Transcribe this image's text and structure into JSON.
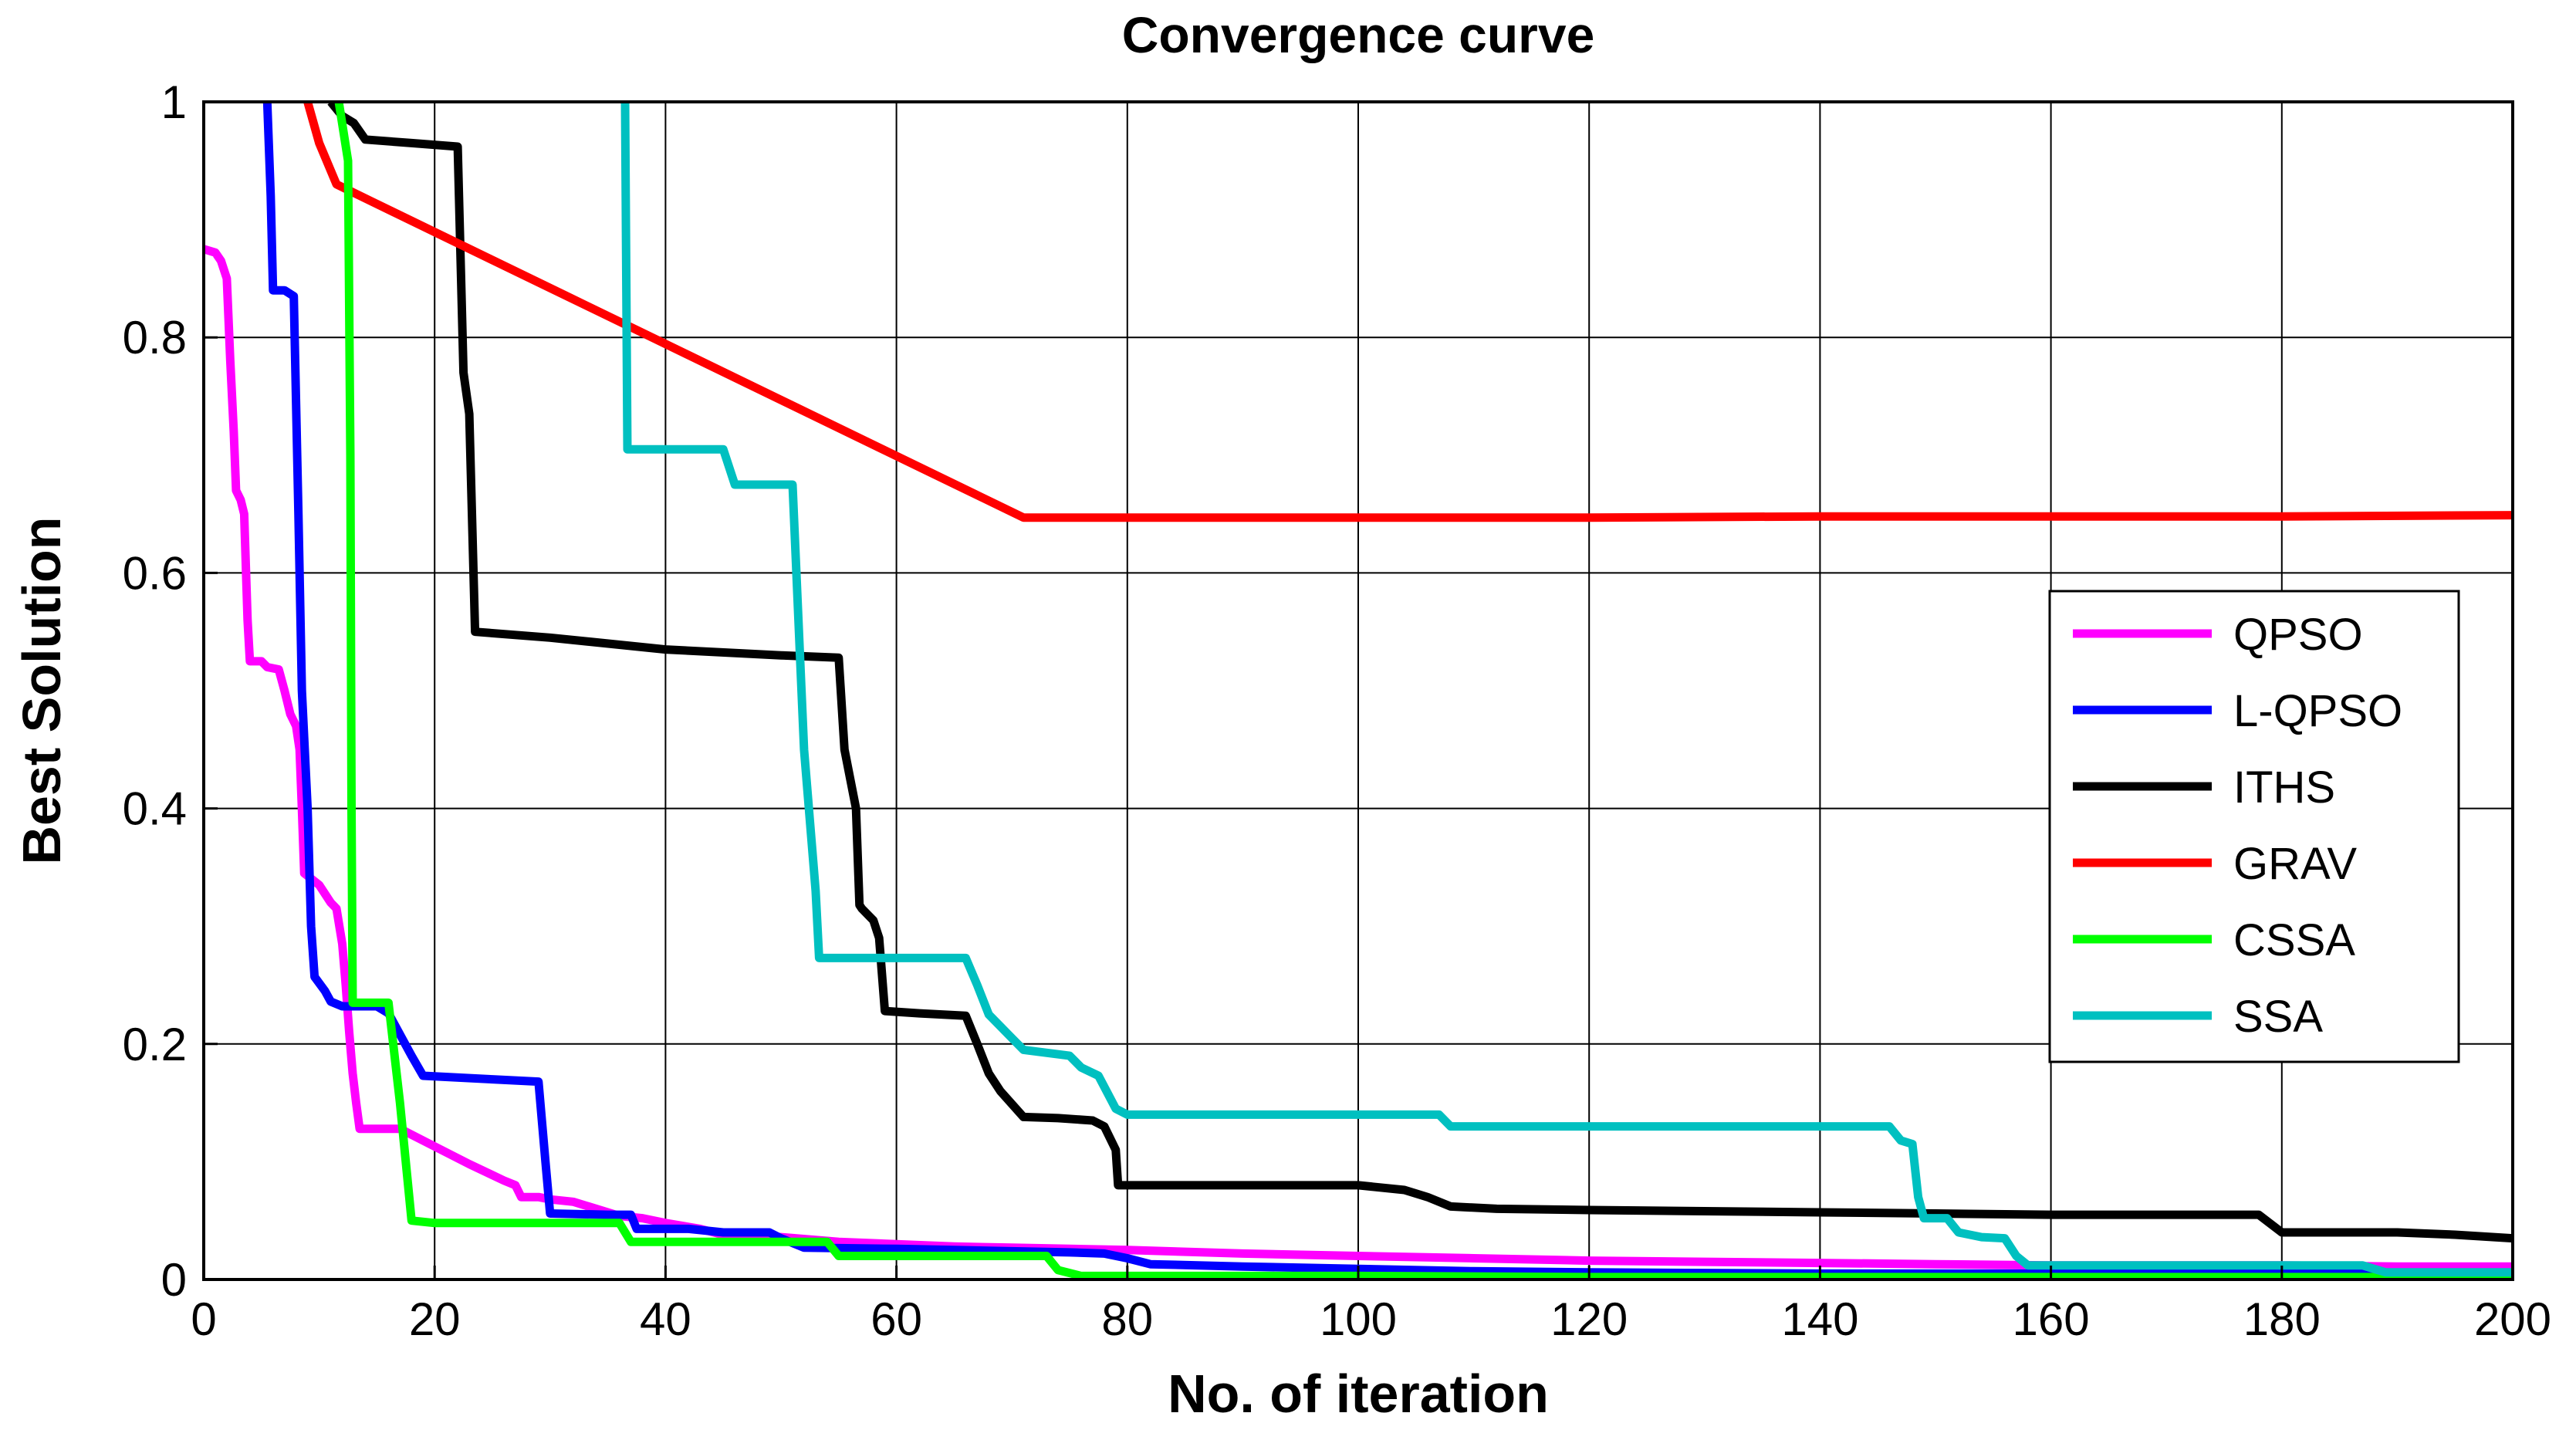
{
  "chart_data": {
    "type": "line",
    "title": "Convergence curve",
    "xlabel": "No. of iteration",
    "ylabel": "Best Solution",
    "xlim": [
      0,
      200
    ],
    "ylim": [
      0,
      1
    ],
    "xticks": [
      0,
      20,
      40,
      60,
      80,
      100,
      120,
      140,
      160,
      180,
      200
    ],
    "yticks": [
      0,
      0.2,
      0.4,
      0.6,
      0.8,
      1
    ],
    "ytick_labels": [
      "0",
      "0.2",
      "0.4",
      "0.6",
      "0.8",
      "1"
    ],
    "grid": true,
    "legend_position": "right",
    "series": [
      {
        "name": "QPSO",
        "color": "#ff00ff",
        "points": [
          [
            0,
            0.875
          ],
          [
            1,
            0.872
          ],
          [
            1.5,
            0.865
          ],
          [
            2,
            0.85
          ],
          [
            2.3,
            0.78
          ],
          [
            2.6,
            0.72
          ],
          [
            2.8,
            0.67
          ],
          [
            3.2,
            0.662
          ],
          [
            3.5,
            0.65
          ],
          [
            3.8,
            0.56
          ],
          [
            4,
            0.525
          ],
          [
            5,
            0.525
          ],
          [
            5.5,
            0.52
          ],
          [
            6.5,
            0.518
          ],
          [
            7,
            0.5
          ],
          [
            7.5,
            0.48
          ],
          [
            8,
            0.47
          ],
          [
            8.3,
            0.45
          ],
          [
            8.5,
            0.4
          ],
          [
            8.7,
            0.345
          ],
          [
            10,
            0.335
          ],
          [
            11,
            0.32
          ],
          [
            11.5,
            0.315
          ],
          [
            12,
            0.285
          ],
          [
            12.3,
            0.25
          ],
          [
            12.6,
            0.21
          ],
          [
            12.9,
            0.175
          ],
          [
            13.2,
            0.15
          ],
          [
            13.5,
            0.128
          ],
          [
            17,
            0.128
          ],
          [
            20,
            0.113
          ],
          [
            23,
            0.098
          ],
          [
            26,
            0.084
          ],
          [
            27,
            0.08
          ],
          [
            27.5,
            0.07
          ],
          [
            29,
            0.07
          ],
          [
            30,
            0.068
          ],
          [
            32,
            0.066
          ],
          [
            34,
            0.06
          ],
          [
            36,
            0.054
          ],
          [
            38,
            0.052
          ],
          [
            40,
            0.048
          ],
          [
            43,
            0.043
          ],
          [
            45,
            0.038
          ],
          [
            50,
            0.036
          ],
          [
            55,
            0.032
          ],
          [
            60,
            0.03
          ],
          [
            65,
            0.028
          ],
          [
            70,
            0.027
          ],
          [
            75,
            0.026
          ],
          [
            80,
            0.025
          ],
          [
            90,
            0.022
          ],
          [
            100,
            0.02
          ],
          [
            110,
            0.018
          ],
          [
            120,
            0.016
          ],
          [
            130,
            0.015
          ],
          [
            140,
            0.014
          ],
          [
            150,
            0.013
          ],
          [
            160,
            0.012
          ],
          [
            170,
            0.012
          ],
          [
            180,
            0.012
          ],
          [
            190,
            0.011
          ],
          [
            200,
            0.011
          ]
        ]
      },
      {
        "name": "L-QPSO",
        "color": "#0000ff",
        "points": [
          [
            5.5,
            1.0
          ],
          [
            5.8,
            0.92
          ],
          [
            6,
            0.84
          ],
          [
            7,
            0.84
          ],
          [
            7.8,
            0.835
          ],
          [
            8.2,
            0.65
          ],
          [
            8.5,
            0.5
          ],
          [
            9,
            0.4
          ],
          [
            9.3,
            0.3
          ],
          [
            9.6,
            0.257
          ],
          [
            10.5,
            0.245
          ],
          [
            11,
            0.236
          ],
          [
            12,
            0.232
          ],
          [
            13,
            0.232
          ],
          [
            15,
            0.232
          ],
          [
            16,
            0.226
          ],
          [
            18,
            0.19
          ],
          [
            19,
            0.173
          ],
          [
            25,
            0.17
          ],
          [
            29,
            0.168
          ],
          [
            29.6,
            0.1
          ],
          [
            30,
            0.056
          ],
          [
            35,
            0.055
          ],
          [
            37,
            0.055
          ],
          [
            37.5,
            0.043
          ],
          [
            42,
            0.043
          ],
          [
            45,
            0.04
          ],
          [
            49,
            0.04
          ],
          [
            50,
            0.035
          ],
          [
            52,
            0.027
          ],
          [
            60,
            0.026
          ],
          [
            65,
            0.025
          ],
          [
            70,
            0.024
          ],
          [
            75,
            0.023
          ],
          [
            78,
            0.022
          ],
          [
            80,
            0.018
          ],
          [
            82,
            0.013
          ],
          [
            90,
            0.011
          ],
          [
            100,
            0.009
          ],
          [
            110,
            0.007
          ],
          [
            120,
            0.006
          ],
          [
            140,
            0.005
          ],
          [
            160,
            0.005
          ],
          [
            180,
            0.005
          ],
          [
            200,
            0.005
          ]
        ]
      },
      {
        "name": "ITHS",
        "color": "#000000",
        "points": [
          [
            11,
            1.0
          ],
          [
            12,
            0.988
          ],
          [
            13,
            0.982
          ],
          [
            14,
            0.968
          ],
          [
            18,
            0.965
          ],
          [
            22,
            0.962
          ],
          [
            22.5,
            0.77
          ],
          [
            23,
            0.735
          ],
          [
            23.5,
            0.55
          ],
          [
            30,
            0.545
          ],
          [
            40,
            0.535
          ],
          [
            50,
            0.53
          ],
          [
            55,
            0.528
          ],
          [
            55.5,
            0.45
          ],
          [
            56.5,
            0.4
          ],
          [
            56.8,
            0.318
          ],
          [
            57,
            0.315
          ],
          [
            58,
            0.305
          ],
          [
            58.5,
            0.29
          ],
          [
            59,
            0.228
          ],
          [
            62,
            0.226
          ],
          [
            66,
            0.224
          ],
          [
            67,
            0.2
          ],
          [
            68,
            0.175
          ],
          [
            69,
            0.16
          ],
          [
            71,
            0.138
          ],
          [
            74,
            0.137
          ],
          [
            77,
            0.135
          ],
          [
            78,
            0.13
          ],
          [
            79,
            0.11
          ],
          [
            79.2,
            0.08
          ],
          [
            85,
            0.08
          ],
          [
            95,
            0.08
          ],
          [
            100,
            0.08
          ],
          [
            104,
            0.076
          ],
          [
            106,
            0.07
          ],
          [
            108,
            0.062
          ],
          [
            112,
            0.06
          ],
          [
            120,
            0.059
          ],
          [
            130,
            0.058
          ],
          [
            140,
            0.057
          ],
          [
            150,
            0.056
          ],
          [
            160,
            0.055
          ],
          [
            170,
            0.055
          ],
          [
            178,
            0.055
          ],
          [
            180,
            0.04
          ],
          [
            190,
            0.04
          ],
          [
            195,
            0.038
          ],
          [
            200,
            0.035
          ]
        ]
      },
      {
        "name": "GRAV",
        "color": "#ff0000",
        "points": [
          [
            9,
            1.0
          ],
          [
            10,
            0.965
          ],
          [
            11.5,
            0.93
          ],
          [
            14,
            0.918
          ],
          [
            71,
            0.647
          ],
          [
            80,
            0.647
          ],
          [
            100,
            0.647
          ],
          [
            120,
            0.647
          ],
          [
            140,
            0.648
          ],
          [
            160,
            0.648
          ],
          [
            180,
            0.648
          ],
          [
            200,
            0.649
          ]
        ]
      },
      {
        "name": "CSSA",
        "color": "#00ff00",
        "points": [
          [
            11.7,
            1.0
          ],
          [
            12.5,
            0.95
          ],
          [
            12.7,
            0.7
          ],
          [
            12.8,
            0.4
          ],
          [
            12.9,
            0.235
          ],
          [
            16,
            0.235
          ],
          [
            17,
            0.15
          ],
          [
            18,
            0.05
          ],
          [
            20,
            0.048
          ],
          [
            25,
            0.048
          ],
          [
            30,
            0.048
          ],
          [
            35,
            0.048
          ],
          [
            36,
            0.048
          ],
          [
            37,
            0.032
          ],
          [
            45,
            0.032
          ],
          [
            54,
            0.032
          ],
          [
            55,
            0.02
          ],
          [
            60,
            0.02
          ],
          [
            65,
            0.02
          ],
          [
            73,
            0.02
          ],
          [
            74,
            0.008
          ],
          [
            76,
            0.003
          ],
          [
            80,
            0.003
          ],
          [
            100,
            0.003
          ],
          [
            120,
            0.002
          ],
          [
            140,
            0.002
          ],
          [
            160,
            0.002
          ],
          [
            180,
            0.002
          ],
          [
            200,
            0.002
          ]
        ]
      },
      {
        "name": "SSA",
        "color": "#00c0c0",
        "points": [
          [
            36.5,
            1.0
          ],
          [
            36.7,
            0.705
          ],
          [
            45,
            0.705
          ],
          [
            46,
            0.675
          ],
          [
            51,
            0.675
          ],
          [
            52,
            0.45
          ],
          [
            53,
            0.33
          ],
          [
            53.3,
            0.273
          ],
          [
            60,
            0.273
          ],
          [
            66,
            0.273
          ],
          [
            67,
            0.25
          ],
          [
            68,
            0.225
          ],
          [
            70,
            0.205
          ],
          [
            71,
            0.195
          ],
          [
            75,
            0.19
          ],
          [
            76,
            0.18
          ],
          [
            77.5,
            0.173
          ],
          [
            79,
            0.145
          ],
          [
            80,
            0.14
          ],
          [
            90,
            0.14
          ],
          [
            100,
            0.14
          ],
          [
            107,
            0.14
          ],
          [
            108,
            0.13
          ],
          [
            120,
            0.13
          ],
          [
            130,
            0.13
          ],
          [
            140,
            0.13
          ],
          [
            146,
            0.13
          ],
          [
            147,
            0.118
          ],
          [
            148,
            0.115
          ],
          [
            148.5,
            0.07
          ],
          [
            149,
            0.052
          ],
          [
            151,
            0.052
          ],
          [
            152,
            0.04
          ],
          [
            154,
            0.036
          ],
          [
            156,
            0.035
          ],
          [
            157,
            0.02
          ],
          [
            158,
            0.012
          ],
          [
            160,
            0.012
          ],
          [
            180,
            0.012
          ],
          [
            187,
            0.012
          ],
          [
            189,
            0.006
          ],
          [
            200,
            0.006
          ]
        ]
      }
    ]
  }
}
